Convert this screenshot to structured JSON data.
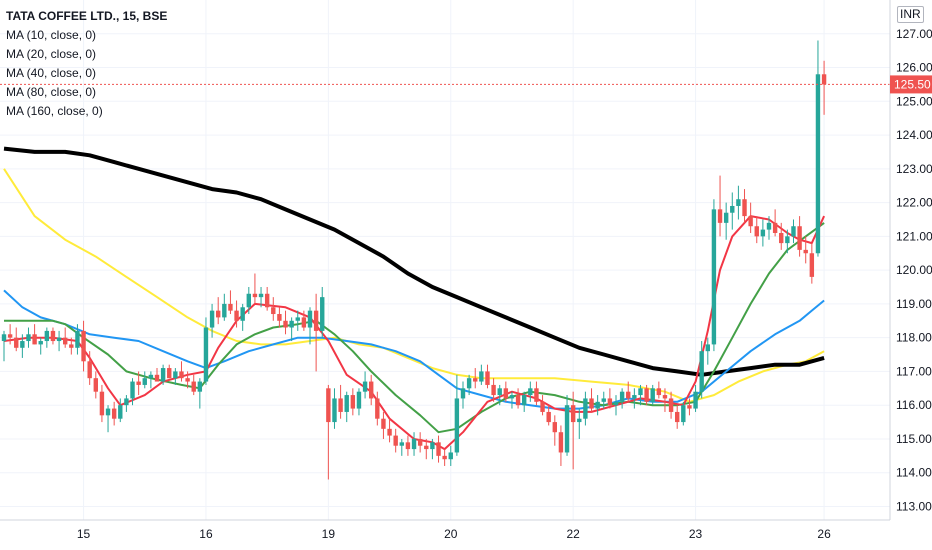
{
  "legend": {
    "title": "TATA COFFEE LTD., 15, BSE",
    "ma": [
      "MA (10, close, 0)",
      "MA (20, close, 0)",
      "MA (40, close, 0)",
      "MA (80, close, 0)",
      "MA (160, close, 0)"
    ]
  },
  "currency": "INR",
  "chart_data": {
    "type": "candlestick",
    "title": "TATA COFFEE LTD., 15, BSE",
    "ylim": [
      112.6,
      128.0
    ],
    "yticks": [
      "113.00",
      "114.00",
      "115.00",
      "116.00",
      "117.00",
      "118.00",
      "119.00",
      "120.00",
      "121.00",
      "122.00",
      "123.00",
      "124.00",
      "125.00",
      "126.00",
      "127.00"
    ],
    "xticks": [
      {
        "label": "15",
        "index": 13
      },
      {
        "label": "16",
        "index": 33
      },
      {
        "label": "19",
        "index": 53
      },
      {
        "label": "20",
        "index": 73
      },
      {
        "label": "22",
        "index": 93
      },
      {
        "label": "23",
        "index": 113
      },
      {
        "label": "26",
        "index": 134
      }
    ],
    "last_price": "125.50",
    "last_price_value": 125.5,
    "colors": {
      "up": "#26a69a",
      "down": "#ef5350",
      "ma10": "#f23645",
      "ma20": "#43a047",
      "ma40": "#2196f3",
      "ma80": "#ffeb3b",
      "ma160": "#000000"
    },
    "candles": [
      [
        117.9,
        118.2,
        117.3,
        118.1
      ],
      [
        118.1,
        118.4,
        117.8,
        118.0
      ],
      [
        118.0,
        118.3,
        117.6,
        117.7
      ],
      [
        117.7,
        118.1,
        117.4,
        117.9
      ],
      [
        117.9,
        118.3,
        117.7,
        118.1
      ],
      [
        118.1,
        118.4,
        117.8,
        117.8
      ],
      [
        117.8,
        118.0,
        117.5,
        117.9
      ],
      [
        117.9,
        118.3,
        117.7,
        118.2
      ],
      [
        118.2,
        118.3,
        117.8,
        117.9
      ],
      [
        117.9,
        118.2,
        117.6,
        118.0
      ],
      [
        118.0,
        118.3,
        117.7,
        117.8
      ],
      [
        117.8,
        118.0,
        117.5,
        117.7
      ],
      [
        117.7,
        118.4,
        117.5,
        118.2
      ],
      [
        118.2,
        118.5,
        117.0,
        117.3
      ],
      [
        117.3,
        117.6,
        116.6,
        116.8
      ],
      [
        116.8,
        117.0,
        116.2,
        116.4
      ],
      [
        116.4,
        116.6,
        115.5,
        115.7
      ],
      [
        115.7,
        116.0,
        115.2,
        115.9
      ],
      [
        115.9,
        116.1,
        115.4,
        115.6
      ],
      [
        115.6,
        116.2,
        115.5,
        116.0
      ],
      [
        116.0,
        116.3,
        115.8,
        116.2
      ],
      [
        116.2,
        116.8,
        116.0,
        116.7
      ],
      [
        116.7,
        117.0,
        116.3,
        116.6
      ],
      [
        116.6,
        117.0,
        116.5,
        116.8
      ],
      [
        116.8,
        117.0,
        116.5,
        116.9
      ],
      [
        116.9,
        117.1,
        116.7,
        116.7
      ],
      [
        116.7,
        117.2,
        116.6,
        117.1
      ],
      [
        117.1,
        117.2,
        116.8,
        116.8
      ],
      [
        116.8,
        117.1,
        116.6,
        117.0
      ],
      [
        117.0,
        117.3,
        116.7,
        116.8
      ],
      [
        116.8,
        117.0,
        116.5,
        116.7
      ],
      [
        116.7,
        116.9,
        116.3,
        116.4
      ],
      [
        116.4,
        116.8,
        115.9,
        116.7
      ],
      [
        116.7,
        118.6,
        116.6,
        118.3
      ],
      [
        118.3,
        119.0,
        118.0,
        118.8
      ],
      [
        118.8,
        119.2,
        118.4,
        118.6
      ],
      [
        118.6,
        119.3,
        118.5,
        119.0
      ],
      [
        119.0,
        119.4,
        118.7,
        118.8
      ],
      [
        118.8,
        119.1,
        118.3,
        118.5
      ],
      [
        118.5,
        119.0,
        118.2,
        118.9
      ],
      [
        118.9,
        119.5,
        118.7,
        119.3
      ],
      [
        119.3,
        119.9,
        119.0,
        119.2
      ],
      [
        119.2,
        119.5,
        118.9,
        119.3
      ],
      [
        119.3,
        119.5,
        118.8,
        118.9
      ],
      [
        118.9,
        119.2,
        118.5,
        118.7
      ],
      [
        118.7,
        118.9,
        118.3,
        118.5
      ],
      [
        118.5,
        118.8,
        118.1,
        118.3
      ],
      [
        118.3,
        118.6,
        117.9,
        118.5
      ],
      [
        118.5,
        118.8,
        118.2,
        118.6
      ],
      [
        118.6,
        118.8,
        118.2,
        118.3
      ],
      [
        118.3,
        118.9,
        117.8,
        118.8
      ],
      [
        118.8,
        119.3,
        117.0,
        118.2
      ],
      [
        118.2,
        119.5,
        118.0,
        119.2
      ],
      [
        116.5,
        116.6,
        113.8,
        115.5
      ],
      [
        115.5,
        116.5,
        115.3,
        116.2
      ],
      [
        116.2,
        116.6,
        115.6,
        115.8
      ],
      [
        115.8,
        116.4,
        115.5,
        116.3
      ],
      [
        116.3,
        116.5,
        115.7,
        115.9
      ],
      [
        115.9,
        116.5,
        115.7,
        116.4
      ],
      [
        116.4,
        117.0,
        116.2,
        116.7
      ],
      [
        116.7,
        116.9,
        116.0,
        116.2
      ],
      [
        116.2,
        116.4,
        115.4,
        115.6
      ],
      [
        115.6,
        115.8,
        115.0,
        115.3
      ],
      [
        115.3,
        115.6,
        114.9,
        115.1
      ],
      [
        115.1,
        115.3,
        114.6,
        114.8
      ],
      [
        114.8,
        115.0,
        114.5,
        114.9
      ],
      [
        114.9,
        115.1,
        114.5,
        114.7
      ],
      [
        114.7,
        115.2,
        114.5,
        115.0
      ],
      [
        115.0,
        115.2,
        114.6,
        114.8
      ],
      [
        114.8,
        115.0,
        114.4,
        114.7
      ],
      [
        114.7,
        115.0,
        114.4,
        114.9
      ],
      [
        114.9,
        115.1,
        114.3,
        114.5
      ],
      [
        114.5,
        114.7,
        114.2,
        114.4
      ],
      [
        114.4,
        114.8,
        114.2,
        114.6
      ],
      [
        114.6,
        116.9,
        114.5,
        116.2
      ],
      [
        116.2,
        116.7,
        115.9,
        116.5
      ],
      [
        116.5,
        116.9,
        116.3,
        116.8
      ],
      [
        116.8,
        117.1,
        116.5,
        116.7
      ],
      [
        116.7,
        117.2,
        116.6,
        117.0
      ],
      [
        117.0,
        117.2,
        116.5,
        116.6
      ],
      [
        116.6,
        116.8,
        116.1,
        116.3
      ],
      [
        116.3,
        116.6,
        116.0,
        116.5
      ],
      [
        116.5,
        116.7,
        116.1,
        116.2
      ],
      [
        116.2,
        116.4,
        115.9,
        116.3
      ],
      [
        116.3,
        116.5,
        115.9,
        116.0
      ],
      [
        116.0,
        116.4,
        115.8,
        116.3
      ],
      [
        116.3,
        116.7,
        116.1,
        116.5
      ],
      [
        116.5,
        116.7,
        116.0,
        116.1
      ],
      [
        116.1,
        116.3,
        115.7,
        115.8
      ],
      [
        115.8,
        116.0,
        115.4,
        115.5
      ],
      [
        115.5,
        115.7,
        114.8,
        115.2
      ],
      [
        115.2,
        115.4,
        114.2,
        114.6
      ],
      [
        114.6,
        116.3,
        114.5,
        116.0
      ],
      [
        116.0,
        116.4,
        114.1,
        115.5
      ],
      [
        115.5,
        115.9,
        115.0,
        115.6
      ],
      [
        115.6,
        116.4,
        115.4,
        116.2
      ],
      [
        116.2,
        116.5,
        115.8,
        115.9
      ],
      [
        115.9,
        116.3,
        115.7,
        116.1
      ],
      [
        116.1,
        116.4,
        115.9,
        116.2
      ],
      [
        116.2,
        116.5,
        115.9,
        116.0
      ],
      [
        116.0,
        116.3,
        115.7,
        116.1
      ],
      [
        116.1,
        116.5,
        115.9,
        116.4
      ],
      [
        116.4,
        116.7,
        116.1,
        116.2
      ],
      [
        116.2,
        116.5,
        115.9,
        116.3
      ],
      [
        116.3,
        116.6,
        116.0,
        116.5
      ],
      [
        116.5,
        116.6,
        116.0,
        116.1
      ],
      [
        116.1,
        116.6,
        116.0,
        116.5
      ],
      [
        116.5,
        116.7,
        116.2,
        116.3
      ],
      [
        116.3,
        116.5,
        115.8,
        116.2
      ],
      [
        116.2,
        116.4,
        115.6,
        115.8
      ],
      [
        115.8,
        116.0,
        115.3,
        115.5
      ],
      [
        115.5,
        116.1,
        115.4,
        116.0
      ],
      [
        116.0,
        116.2,
        115.7,
        115.9
      ],
      [
        115.9,
        116.6,
        115.8,
        116.4
      ],
      [
        116.4,
        117.9,
        116.2,
        117.6
      ],
      [
        117.6,
        118.0,
        117.2,
        117.8
      ],
      [
        117.8,
        122.1,
        117.6,
        121.8
      ],
      [
        121.8,
        122.8,
        121.0,
        121.4
      ],
      [
        121.4,
        122.0,
        120.9,
        121.7
      ],
      [
        121.7,
        122.3,
        121.2,
        121.9
      ],
      [
        121.9,
        122.5,
        121.5,
        122.1
      ],
      [
        122.1,
        122.4,
        121.4,
        121.6
      ],
      [
        121.6,
        122.0,
        121.1,
        121.3
      ],
      [
        121.3,
        121.6,
        120.8,
        121.0
      ],
      [
        121.0,
        121.5,
        120.7,
        121.2
      ],
      [
        121.2,
        121.6,
        120.9,
        121.4
      ],
      [
        121.4,
        121.8,
        121.0,
        121.1
      ],
      [
        121.1,
        121.4,
        120.6,
        120.8
      ],
      [
        120.8,
        121.2,
        120.5,
        121.0
      ],
      [
        121.0,
        121.5,
        120.8,
        121.3
      ],
      [
        121.3,
        121.6,
        120.4,
        120.6
      ],
      [
        120.6,
        121.0,
        120.2,
        120.5
      ],
      [
        120.5,
        120.8,
        119.6,
        119.8
      ],
      [
        120.5,
        126.8,
        120.4,
        125.8
      ],
      [
        125.8,
        126.2,
        124.6,
        125.5
      ]
    ],
    "ma10": [
      [
        0,
        117.9
      ],
      [
        4,
        118.0
      ],
      [
        8,
        118.0
      ],
      [
        12,
        117.9
      ],
      [
        14,
        117.4
      ],
      [
        17,
        116.5
      ],
      [
        19,
        116.0
      ],
      [
        23,
        116.3
      ],
      [
        26,
        116.7
      ],
      [
        30,
        116.9
      ],
      [
        33,
        117.0
      ],
      [
        35,
        117.7
      ],
      [
        38,
        118.5
      ],
      [
        41,
        119.0
      ],
      [
        46,
        118.9
      ],
      [
        50,
        118.6
      ],
      [
        53,
        117.9
      ],
      [
        56,
        116.9
      ],
      [
        60,
        116.4
      ],
      [
        63,
        115.6
      ],
      [
        67,
        115.0
      ],
      [
        70,
        114.9
      ],
      [
        72,
        114.7
      ],
      [
        75,
        115.2
      ],
      [
        79,
        116.1
      ],
      [
        83,
        116.4
      ],
      [
        87,
        116.2
      ],
      [
        90,
        115.9
      ],
      [
        93,
        115.8
      ],
      [
        96,
        115.8
      ],
      [
        100,
        116.0
      ],
      [
        104,
        116.2
      ],
      [
        108,
        116.1
      ],
      [
        111,
        116.0
      ],
      [
        113,
        116.7
      ],
      [
        115,
        118.2
      ],
      [
        117,
        120.0
      ],
      [
        119,
        121.0
      ],
      [
        122,
        121.6
      ],
      [
        125,
        121.5
      ],
      [
        128,
        121.1
      ],
      [
        130,
        120.9
      ],
      [
        132,
        120.8
      ],
      [
        134,
        121.6
      ]
    ],
    "ma20": [
      [
        0,
        118.5
      ],
      [
        4,
        118.5
      ],
      [
        8,
        118.5
      ],
      [
        10,
        118.4
      ],
      [
        13,
        118.0
      ],
      [
        17,
        117.5
      ],
      [
        20,
        117.0
      ],
      [
        24,
        116.8
      ],
      [
        29,
        116.6
      ],
      [
        32,
        116.5
      ],
      [
        35,
        117.2
      ],
      [
        38,
        117.8
      ],
      [
        41,
        118.1
      ],
      [
        44,
        118.3
      ],
      [
        48,
        118.4
      ],
      [
        51,
        118.5
      ],
      [
        54,
        118.1
      ],
      [
        57,
        117.6
      ],
      [
        60,
        117.0
      ],
      [
        64,
        116.3
      ],
      [
        68,
        115.7
      ],
      [
        71,
        115.2
      ],
      [
        74,
        115.3
      ],
      [
        78,
        115.8
      ],
      [
        82,
        116.2
      ],
      [
        86,
        116.4
      ],
      [
        90,
        116.3
      ],
      [
        94,
        116.1
      ],
      [
        98,
        116.0
      ],
      [
        102,
        116.1
      ],
      [
        106,
        116.0
      ],
      [
        110,
        116.0
      ],
      [
        113,
        116.1
      ],
      [
        116,
        117.0
      ],
      [
        119,
        118.0
      ],
      [
        122,
        119.0
      ],
      [
        125,
        119.9
      ],
      [
        128,
        120.6
      ],
      [
        131,
        121.0
      ],
      [
        134,
        121.4
      ]
    ],
    "ma40": [
      [
        0,
        119.4
      ],
      [
        3,
        118.9
      ],
      [
        6,
        118.6
      ],
      [
        10,
        118.4
      ],
      [
        14,
        118.1
      ],
      [
        18,
        118.0
      ],
      [
        22,
        117.9
      ],
      [
        26,
        117.6
      ],
      [
        30,
        117.3
      ],
      [
        33,
        117.1
      ],
      [
        36,
        117.3
      ],
      [
        40,
        117.6
      ],
      [
        44,
        117.8
      ],
      [
        48,
        118.0
      ],
      [
        52,
        118.0
      ],
      [
        56,
        117.9
      ],
      [
        60,
        117.8
      ],
      [
        64,
        117.6
      ],
      [
        68,
        117.3
      ],
      [
        71,
        116.9
      ],
      [
        74,
        116.5
      ],
      [
        78,
        116.3
      ],
      [
        82,
        116.1
      ],
      [
        86,
        116.0
      ],
      [
        90,
        115.9
      ],
      [
        94,
        115.9
      ],
      [
        98,
        116.0
      ],
      [
        102,
        116.2
      ],
      [
        106,
        116.1
      ],
      [
        110,
        116.1
      ],
      [
        114,
        116.4
      ],
      [
        118,
        117.0
      ],
      [
        122,
        117.6
      ],
      [
        126,
        118.1
      ],
      [
        130,
        118.5
      ],
      [
        132,
        118.8
      ],
      [
        134,
        119.1
      ]
    ],
    "ma80": [
      [
        0,
        123.0
      ],
      [
        5,
        121.6
      ],
      [
        10,
        120.9
      ],
      [
        15,
        120.4
      ],
      [
        20,
        119.8
      ],
      [
        25,
        119.2
      ],
      [
        30,
        118.6
      ],
      [
        34,
        118.2
      ],
      [
        38,
        117.9
      ],
      [
        42,
        117.8
      ],
      [
        46,
        117.8
      ],
      [
        50,
        117.9
      ],
      [
        54,
        118.0
      ],
      [
        58,
        117.8
      ],
      [
        62,
        117.7
      ],
      [
        66,
        117.4
      ],
      [
        70,
        117.1
      ],
      [
        74,
        116.9
      ],
      [
        78,
        116.8
      ],
      [
        84,
        116.8
      ],
      [
        90,
        116.8
      ],
      [
        96,
        116.7
      ],
      [
        102,
        116.6
      ],
      [
        108,
        116.4
      ],
      [
        112,
        116.1
      ],
      [
        116,
        116.3
      ],
      [
        120,
        116.7
      ],
      [
        124,
        117.0
      ],
      [
        128,
        117.2
      ],
      [
        131,
        117.3
      ],
      [
        134,
        117.6
      ]
    ],
    "ma160": [
      [
        0,
        123.6
      ],
      [
        5,
        123.5
      ],
      [
        10,
        123.5
      ],
      [
        14,
        123.4
      ],
      [
        18,
        123.2
      ],
      [
        22,
        123.0
      ],
      [
        26,
        122.8
      ],
      [
        30,
        122.6
      ],
      [
        34,
        122.4
      ],
      [
        38,
        122.3
      ],
      [
        42,
        122.1
      ],
      [
        46,
        121.8
      ],
      [
        50,
        121.5
      ],
      [
        54,
        121.2
      ],
      [
        58,
        120.8
      ],
      [
        62,
        120.4
      ],
      [
        66,
        119.9
      ],
      [
        70,
        119.5
      ],
      [
        74,
        119.2
      ],
      [
        78,
        118.9
      ],
      [
        82,
        118.6
      ],
      [
        86,
        118.3
      ],
      [
        90,
        118.0
      ],
      [
        94,
        117.7
      ],
      [
        98,
        117.5
      ],
      [
        102,
        117.3
      ],
      [
        106,
        117.1
      ],
      [
        110,
        117.0
      ],
      [
        114,
        116.9
      ],
      [
        118,
        117.0
      ],
      [
        122,
        117.1
      ],
      [
        126,
        117.2
      ],
      [
        130,
        117.2
      ],
      [
        134,
        117.4
      ]
    ]
  }
}
